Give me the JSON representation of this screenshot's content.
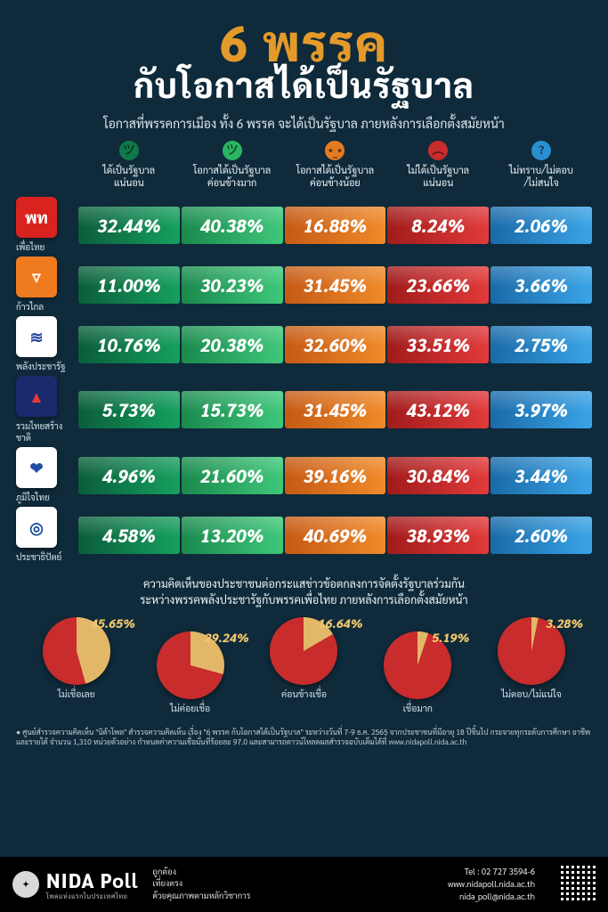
{
  "colors": {
    "bg": "#0f2a3a",
    "title": "#e49a2a",
    "grad": {
      "darkgreen": [
        "#0a5d3a",
        "#16a05f"
      ],
      "green": [
        "#1a8a4d",
        "#3fc77a"
      ],
      "orange": [
        "#c55a14",
        "#f08a2a"
      ],
      "red": [
        "#a11b1b",
        "#e23a3a"
      ],
      "blue": [
        "#1a6aa8",
        "#3aa4e6"
      ]
    },
    "face": {
      "darkgreen": "#0e7a4a",
      "green": "#2ab565",
      "orange": "#e37b22",
      "red": "#c92c2c",
      "blue": "#2a8fd0"
    },
    "pie_fill": "#c92c2c",
    "pie_slice": "#e3b768"
  },
  "title": {
    "main": "6 พรรค",
    "sub": "กับโอกาสได้เป็นรัฐบาล"
  },
  "subtitle": "โอกาสที่พรรคการเมือง ทั้ง 6 พรรค จะได้เป็นรัฐบาล ภายหลังการเลือกตั้งสมัยหน้า",
  "headers": [
    {
      "key": "darkgreen",
      "face": "᠅",
      "l1": "ได้เป็นรัฐบาล",
      "l2": "แน่นอน"
    },
    {
      "key": "green",
      "face": "᠅",
      "l1": "โอกาสได้เป็นรัฐบาล",
      "l2": "ค่อนข้างมาก"
    },
    {
      "key": "orange",
      "face": "᠅",
      "l1": "โอกาสได้เป็นรัฐบาล",
      "l2": "ค่อนข้างน้อย"
    },
    {
      "key": "red",
      "face": "᠅",
      "l1": "ไม่ได้เป็นรัฐบาล",
      "l2": "แน่นอน"
    },
    {
      "key": "blue",
      "face": "?",
      "l1": "ไม่ทราบ/ไม่ตอบ",
      "l2": "/ไม่สนใจ"
    }
  ],
  "parties": [
    {
      "name": "เพื่อไทย",
      "logo_text": "พท",
      "logo_bg": "#d8231f",
      "logo_fg": "#ffffff",
      "values": [
        "32.44%",
        "40.38%",
        "16.88%",
        "8.24%",
        "2.06%"
      ]
    },
    {
      "name": "ก้าวไกล",
      "logo_text": "▽",
      "logo_bg": "#f07b1f",
      "logo_fg": "#ffffff",
      "values": [
        "11.00%",
        "30.23%",
        "31.45%",
        "23.66%",
        "3.66%"
      ]
    },
    {
      "name": "พลังประชารัฐ",
      "logo_text": "≋",
      "logo_bg": "#ffffff",
      "logo_fg": "#21439b",
      "values": [
        "10.76%",
        "20.38%",
        "32.60%",
        "33.51%",
        "2.75%"
      ]
    },
    {
      "name": "รวมไทยสร้างชาติ",
      "logo_text": "▲",
      "logo_bg": "#1a2a6c",
      "logo_fg": "#e23a3a",
      "values": [
        "5.73%",
        "15.73%",
        "31.45%",
        "43.12%",
        "3.97%"
      ]
    },
    {
      "name": "ภูมิใจไทย",
      "logo_text": "❤",
      "logo_bg": "#ffffff",
      "logo_fg": "#1e4fa0",
      "values": [
        "4.96%",
        "21.60%",
        "39.16%",
        "30.84%",
        "3.44%"
      ]
    },
    {
      "name": "ประชาธิปัตย์",
      "logo_text": "◎",
      "logo_bg": "#ffffff",
      "logo_fg": "#1e4fa0",
      "values": [
        "4.58%",
        "13.20%",
        "40.69%",
        "38.93%",
        "2.60%"
      ]
    }
  ],
  "question2_l1": "ความคิดเห็นของประชาชนต่อกระแสข่าวข้อตกลงการจัดตั้งรัฐบาลร่วมกัน",
  "question2_l2": "ระหว่างพรรคพลังประชารัฐกับพรรคเพื่อไทย ภายหลังการเลือกตั้งสมัยหน้า",
  "pies": [
    {
      "value": "45.65%",
      "label": "ไม่เชื่อเลย",
      "pct": 45.65
    },
    {
      "value": "29.24%",
      "label": "ไม่ค่อยเชื่อ",
      "pct": 29.24
    },
    {
      "value": "16.64%",
      "label": "ค่อนข้างเชื่อ",
      "pct": 16.64
    },
    {
      "value": "5.19%",
      "label": "เชื่อมาก",
      "pct": 5.19
    },
    {
      "value": "3.28%",
      "label": "ไม่ตอบ/ไม่แน่ใจ",
      "pct": 3.28
    }
  ],
  "footnote": "● ศูนย์สำรวจความคิดเห็น \"นิด้าโพล\" สำรวจความคิดเห็น เรื่อง \"6 พรรค กับโอกาสได้เป็นรัฐบาล\" ระหว่างวันที่ 7-9 ธ.ค. 2565 จากประชาชนที่มีอายุ 18 ปีขึ้นไป กระจายทุกระดับการศึกษา อาชีพ และรายได้ จำนวน 1,310 หน่วยตัวอย่าง กำหนดค่าความเชื่อมั่นที่ร้อยละ 97.0 และสามารถดาวน์โหลดผลสำรวจฉบับเต็มได้ที่ www.nidapoll.nida.ac.th",
  "footer": {
    "brand": "NIDA Poll",
    "brand_sub": "โพลแห่งแรกในประเทศไทย",
    "slogan_l1": "ถูกต้อง",
    "slogan_l2": "เที่ยงตรง",
    "slogan_l3": "ด้วยคุณภาพตามหลักวิชาการ",
    "tel": "Tel : 02 727 3594-6",
    "site": "www.nidapoll.nida.ac.th",
    "mail": "nida_poll@nida.ac.th"
  }
}
